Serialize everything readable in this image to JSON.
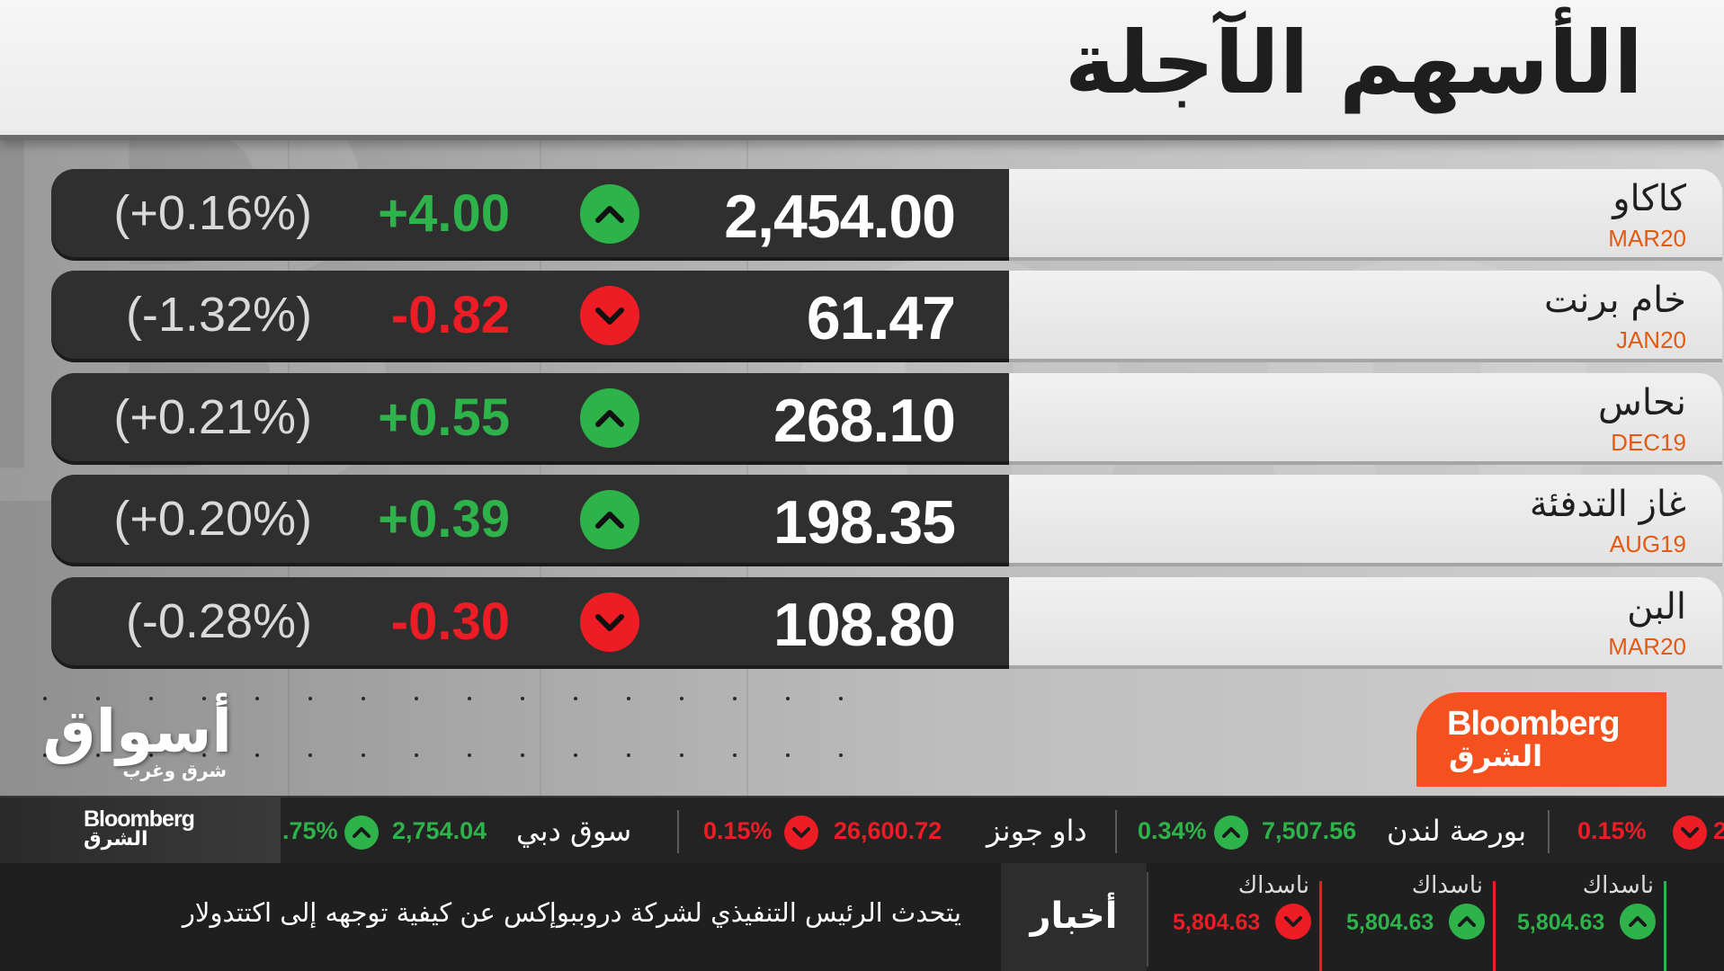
{
  "title": "الأسهم الآجلة",
  "colors": {
    "up": "#2db34a",
    "down": "#ee1c25",
    "accent": "#f4511e",
    "contract": "#e35a12"
  },
  "rows": [
    {
      "name": "كاكاو",
      "contract": "MAR20",
      "price": "2,454.00",
      "change": "+4.00",
      "pct": "(+0.16%)",
      "direction": "up"
    },
    {
      "name": "خام برنت",
      "contract": "JAN20",
      "price": "61.47",
      "change": "-0.82",
      "pct": "(-1.32%)",
      "direction": "down"
    },
    {
      "name": "نحاس",
      "contract": "DEC19",
      "price": "268.10",
      "change": "+0.55",
      "pct": "(+0.21%)",
      "direction": "up"
    },
    {
      "name": "غاز التدفئة",
      "contract": "AUG19",
      "price": "198.35",
      "change": "+0.39",
      "pct": "(+0.20%)",
      "direction": "up"
    },
    {
      "name": "البن",
      "contract": "MAR20",
      "price": "108.80",
      "change": "-0.30",
      "pct": "(-0.28%)",
      "direction": "down"
    }
  ],
  "logos": {
    "aswaq": "أسواق",
    "aswaq_sub": "شرق وغرب",
    "bloomberg_en": "Bloomberg",
    "bloomberg_ar": "الشرق"
  },
  "ticker": {
    "items": [
      {
        "label": "",
        "value": "",
        "pct": "2",
        "direction": "down"
      },
      {
        "label": "بورصة لندن",
        "value": "7,507.56",
        "pct": "0.34%",
        "direction": "up"
      },
      {
        "label": "داو جونز",
        "value": "26,600.72",
        "pct": "0.15%",
        "direction": "down"
      },
      {
        "label": "سوق دبي",
        "value": "2,754.04",
        "pct": ".75%",
        "direction": "up"
      }
    ],
    "lead_pct": "0.15%"
  },
  "news": {
    "label": "أخبار",
    "headline": "يتحدث الرئيس التنفيذي لشركة دروببوإكس عن كيفية توجهه إلى اكتتدولار"
  },
  "mini_quotes": [
    {
      "label": "ناسداك",
      "value": "5,804.63",
      "direction": "up"
    },
    {
      "label": "ناسداك",
      "value": "5,804.63",
      "direction": "up"
    },
    {
      "label": "ناسداك",
      "value": "5,804.63",
      "direction": "down"
    }
  ]
}
